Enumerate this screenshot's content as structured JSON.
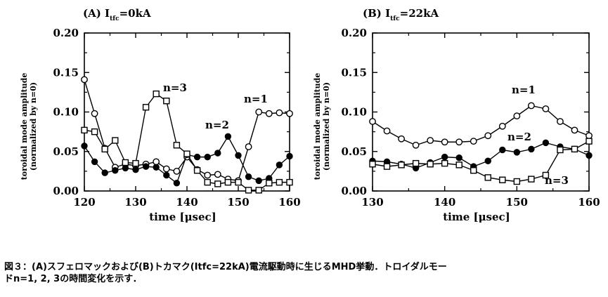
{
  "chart_data": [
    {
      "type": "line",
      "title": "(A) I",
      "title_subscript": "tfc",
      "title_suffix": "=0kA",
      "xlabel": "time [μsec]",
      "ylabel": "toroidal mode amplitude",
      "ylabel2": "(normalized by n=0)",
      "xlim": [
        120,
        160
      ],
      "ylim": [
        0,
        0.2
      ],
      "xticks": [
        "120",
        "130",
        "140",
        "150",
        "160"
      ],
      "yticks": [
        "0.00",
        "0.05",
        "0.10",
        "0.15",
        "0.20"
      ],
      "x": [
        120,
        122,
        124,
        126,
        128,
        130,
        132,
        134,
        136,
        138,
        140,
        142,
        144,
        146,
        148,
        150,
        152,
        154,
        156,
        158,
        160
      ],
      "series": [
        {
          "name": "n=1",
          "marker": "open-circle",
          "values": [
            0.141,
            0.098,
            0.054,
            0.03,
            0.034,
            0.032,
            0.034,
            0.037,
            0.028,
            0.025,
            0.043,
            0.027,
            0.02,
            0.021,
            0.015,
            0.013,
            0.056,
            0.1,
            0.098,
            0.099,
            0.098
          ]
        },
        {
          "name": "n=2",
          "marker": "filled-circle",
          "values": [
            0.057,
            0.037,
            0.023,
            0.026,
            0.029,
            0.027,
            0.031,
            0.03,
            0.02,
            0.01,
            0.046,
            0.043,
            0.043,
            0.048,
            0.069,
            0.045,
            0.018,
            0.013,
            0.016,
            0.033,
            0.044
          ]
        },
        {
          "name": "n=3",
          "marker": "open-square",
          "values": [
            0.077,
            0.075,
            0.053,
            0.064,
            0.036,
            0.035,
            0.106,
            0.123,
            0.114,
            0.058,
            0.047,
            0.026,
            0.011,
            0.009,
            0.011,
            0.011,
            0.001,
            0.001,
            0.01,
            0.011,
            0.011
          ]
        }
      ],
      "annotations": [
        "n=3",
        "n=2",
        "n=1"
      ]
    },
    {
      "type": "line",
      "title": "(B) I",
      "title_subscript": "tfc",
      "title_suffix": "=22kA",
      "xlabel": "time [μsec]",
      "ylabel": "toroidal mode amplitude",
      "ylabel2": "(normalized by n=0)",
      "xlim": [
        130,
        160
      ],
      "ylim": [
        0,
        0.2
      ],
      "xticks": [
        "130",
        "140",
        "150",
        "160"
      ],
      "yticks": [
        "0.00",
        "0.05",
        "0.10",
        "0.15",
        "0.20"
      ],
      "x": [
        130,
        132,
        134,
        136,
        138,
        140,
        142,
        144,
        146,
        148,
        150,
        152,
        154,
        156,
        158,
        160
      ],
      "series": [
        {
          "name": "n=1",
          "marker": "open-circle",
          "values": [
            0.088,
            0.076,
            0.066,
            0.058,
            0.064,
            0.062,
            0.062,
            0.063,
            0.07,
            0.082,
            0.095,
            0.108,
            0.104,
            0.088,
            0.077,
            0.07
          ]
        },
        {
          "name": "n=2",
          "marker": "filled-circle",
          "values": [
            0.038,
            0.037,
            0.034,
            0.029,
            0.036,
            0.043,
            0.042,
            0.031,
            0.038,
            0.052,
            0.049,
            0.053,
            0.061,
            0.056,
            0.053,
            0.045
          ]
        },
        {
          "name": "n=3",
          "marker": "open-square",
          "values": [
            0.034,
            0.031,
            0.033,
            0.035,
            0.034,
            0.035,
            0.033,
            0.026,
            0.017,
            0.014,
            0.012,
            0.015,
            0.02,
            0.052,
            0.053,
            0.063
          ]
        }
      ],
      "annotations": [
        "n=1",
        "n=2",
        "n=3"
      ]
    }
  ],
  "caption": {
    "line1": "図３：(A)スフェロマックおよび(B)トカマク(Itfc=22kA)電流駆動時に生じるMHD挙動．トロイダルモー",
    "line2": "ドn=1, 2, 3の時間変化を示す．"
  }
}
